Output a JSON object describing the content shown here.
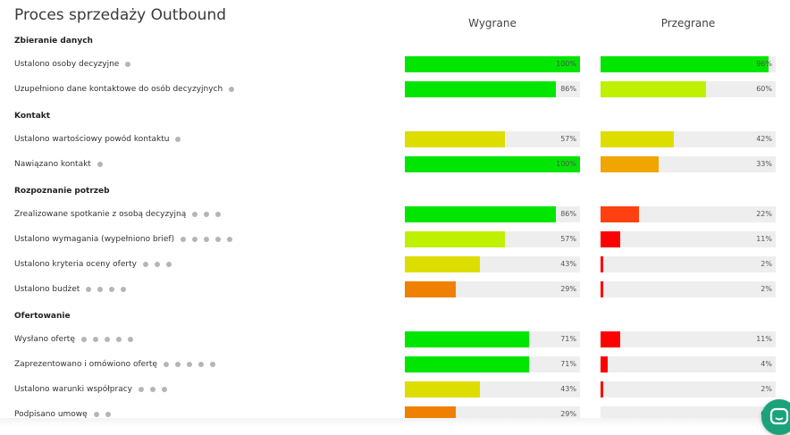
{
  "title": "Proces sprzedaży Outbound",
  "columns": {
    "won": "Wygrane",
    "lost": "Przegrane"
  },
  "colors": {
    "green": "#00e600",
    "lime": "#bff000",
    "olive": "#dddd00",
    "amber": "#f0a500",
    "orange": "#f08000",
    "red_orange": "#ff4010",
    "red": "#ff0000",
    "track": "#eeeeee"
  },
  "chart_data": {
    "type": "bar",
    "title": "Proces sprzedaży Outbound",
    "series_names": [
      "Wygrane",
      "Przegrane"
    ],
    "sections": [
      {
        "name": "Zbieranie danych",
        "items": [
          {
            "label": "Ustalono osoby decyzyjne",
            "dots": 1,
            "won": 100,
            "won_label": "100%",
            "won_color": "green",
            "lost": 96,
            "lost_label": "96%",
            "lost_color": "green"
          },
          {
            "label": "Uzupełniono dane kontaktowe do osób decyzyjnych",
            "dots": 1,
            "won": 86,
            "won_label": "86%",
            "won_color": "green",
            "lost": 60,
            "lost_label": "60%",
            "lost_color": "lime"
          }
        ]
      },
      {
        "name": "Kontakt",
        "items": [
          {
            "label": "Ustalono wartościowy powód kontaktu",
            "dots": 1,
            "won": 57,
            "won_label": "57%",
            "won_color": "olive",
            "lost": 42,
            "lost_label": "42%",
            "lost_color": "olive"
          },
          {
            "label": "Nawiązano kontakt",
            "dots": 1,
            "won": 100,
            "won_label": "100%",
            "won_color": "green",
            "lost": 33,
            "lost_label": "33%",
            "lost_color": "amber"
          }
        ]
      },
      {
        "name": "Rozpoznanie potrzeb",
        "items": [
          {
            "label": "Zrealizowane spotkanie z osobą decyzyjną",
            "dots": 3,
            "won": 86,
            "won_label": "86%",
            "won_color": "green",
            "lost": 22,
            "lost_label": "22%",
            "lost_color": "red_orange"
          },
          {
            "label": "Ustalono wymagania (wypełniono brief)",
            "dots": 5,
            "won": 57,
            "won_label": "57%",
            "won_color": "lime",
            "lost": 11,
            "lost_label": "11%",
            "lost_color": "red"
          },
          {
            "label": "Ustalono kryteria oceny oferty",
            "dots": 3,
            "won": 43,
            "won_label": "43%",
            "won_color": "olive",
            "lost": 2,
            "lost_label": "2%",
            "lost_color": "red"
          },
          {
            "label": "Ustalono budżet",
            "dots": 4,
            "won": 29,
            "won_label": "29%",
            "won_color": "orange",
            "lost": 2,
            "lost_label": "2%",
            "lost_color": "red"
          }
        ]
      },
      {
        "name": "Ofertowanie",
        "items": [
          {
            "label": "Wysłano ofertę",
            "dots": 5,
            "won": 71,
            "won_label": "71%",
            "won_color": "green",
            "lost": 11,
            "lost_label": "11%",
            "lost_color": "red"
          },
          {
            "label": "Zaprezentowano i omówiono ofertę",
            "dots": 5,
            "won": 71,
            "won_label": "71%",
            "won_color": "green",
            "lost": 4,
            "lost_label": "4%",
            "lost_color": "red"
          },
          {
            "label": "Ustalono warunki współpracy",
            "dots": 3,
            "won": 43,
            "won_label": "43%",
            "won_color": "olive",
            "lost": 2,
            "lost_label": "2%",
            "lost_color": "red"
          },
          {
            "label": "Podpisano umowę",
            "dots": 2,
            "won": 29,
            "won_label": "29%",
            "won_color": "orange",
            "lost": 0,
            "lost_label": "0%",
            "lost_color": "red"
          }
        ]
      }
    ]
  },
  "chat_icon": "chat-bubble-icon"
}
